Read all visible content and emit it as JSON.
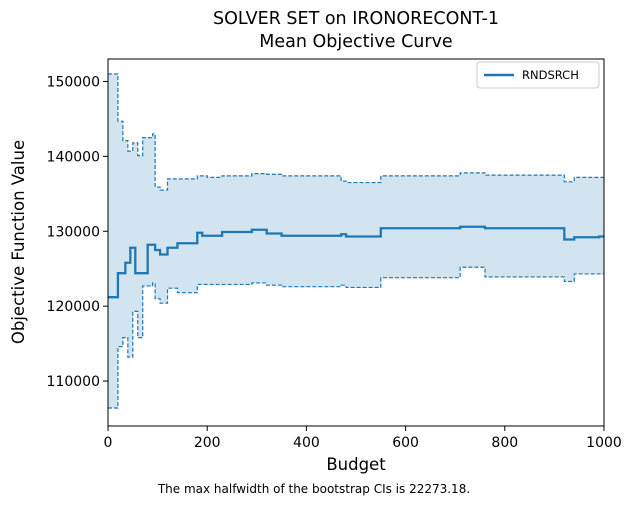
{
  "chart_data": {
    "type": "line",
    "title_line1": "SOLVER SET on IRONORECONT-1",
    "title_line2": "Mean Objective Curve",
    "xlabel": "Budget",
    "ylabel": "Objective Function Value",
    "xlim": [
      0,
      1000
    ],
    "ylim": [
      104000,
      153000
    ],
    "xticks": [
      0,
      200,
      400,
      600,
      800,
      1000
    ],
    "xtick_labels": [
      "0",
      "200",
      "400",
      "600",
      "800",
      "1000"
    ],
    "yticks": [
      110000,
      120000,
      130000,
      140000,
      150000
    ],
    "ytick_labels": [
      "110000",
      "120000",
      "130000",
      "140000",
      "150000"
    ],
    "grid": false,
    "legend": {
      "position": "top-right",
      "entries": [
        "RNDSRCH"
      ]
    },
    "colors": {
      "series": "#1f77b4",
      "band": "#1f77b4"
    },
    "series": [
      {
        "name": "RNDSRCH",
        "x": [
          0,
          20,
          35,
          45,
          55,
          80,
          95,
          105,
          120,
          140,
          180,
          190,
          230,
          290,
          320,
          350,
          470,
          480,
          550,
          710,
          760,
          920,
          940,
          990,
          1000
        ],
        "y": [
          121200,
          124400,
          125800,
          127800,
          124400,
          128200,
          127500,
          126900,
          127800,
          128400,
          129800,
          129400,
          129900,
          130200,
          129700,
          129400,
          129600,
          129300,
          130400,
          130600,
          130400,
          128900,
          129200,
          129300,
          129300
        ]
      }
    ],
    "ci_band": {
      "x": [
        0,
        20,
        30,
        40,
        50,
        60,
        70,
        90,
        95,
        105,
        120,
        140,
        180,
        200,
        230,
        290,
        320,
        350,
        470,
        480,
        550,
        710,
        760,
        920,
        940,
        1000
      ],
      "upper": [
        151000,
        144700,
        142100,
        140700,
        141800,
        140100,
        142500,
        143000,
        135900,
        135500,
        137000,
        137000,
        137400,
        137200,
        137400,
        137700,
        137600,
        137400,
        136700,
        136500,
        137400,
        137800,
        137500,
        136600,
        137200,
        137200
      ],
      "lower": [
        106400,
        114600,
        115800,
        113200,
        119300,
        115800,
        122700,
        123100,
        121000,
        120400,
        122400,
        121800,
        122900,
        122900,
        122900,
        123100,
        122800,
        122600,
        122800,
        122500,
        123800,
        125200,
        123900,
        123300,
        124300,
        124300
      ]
    }
  },
  "footnote": "The max halfwidth of the bootstrap CIs is 22273.18."
}
